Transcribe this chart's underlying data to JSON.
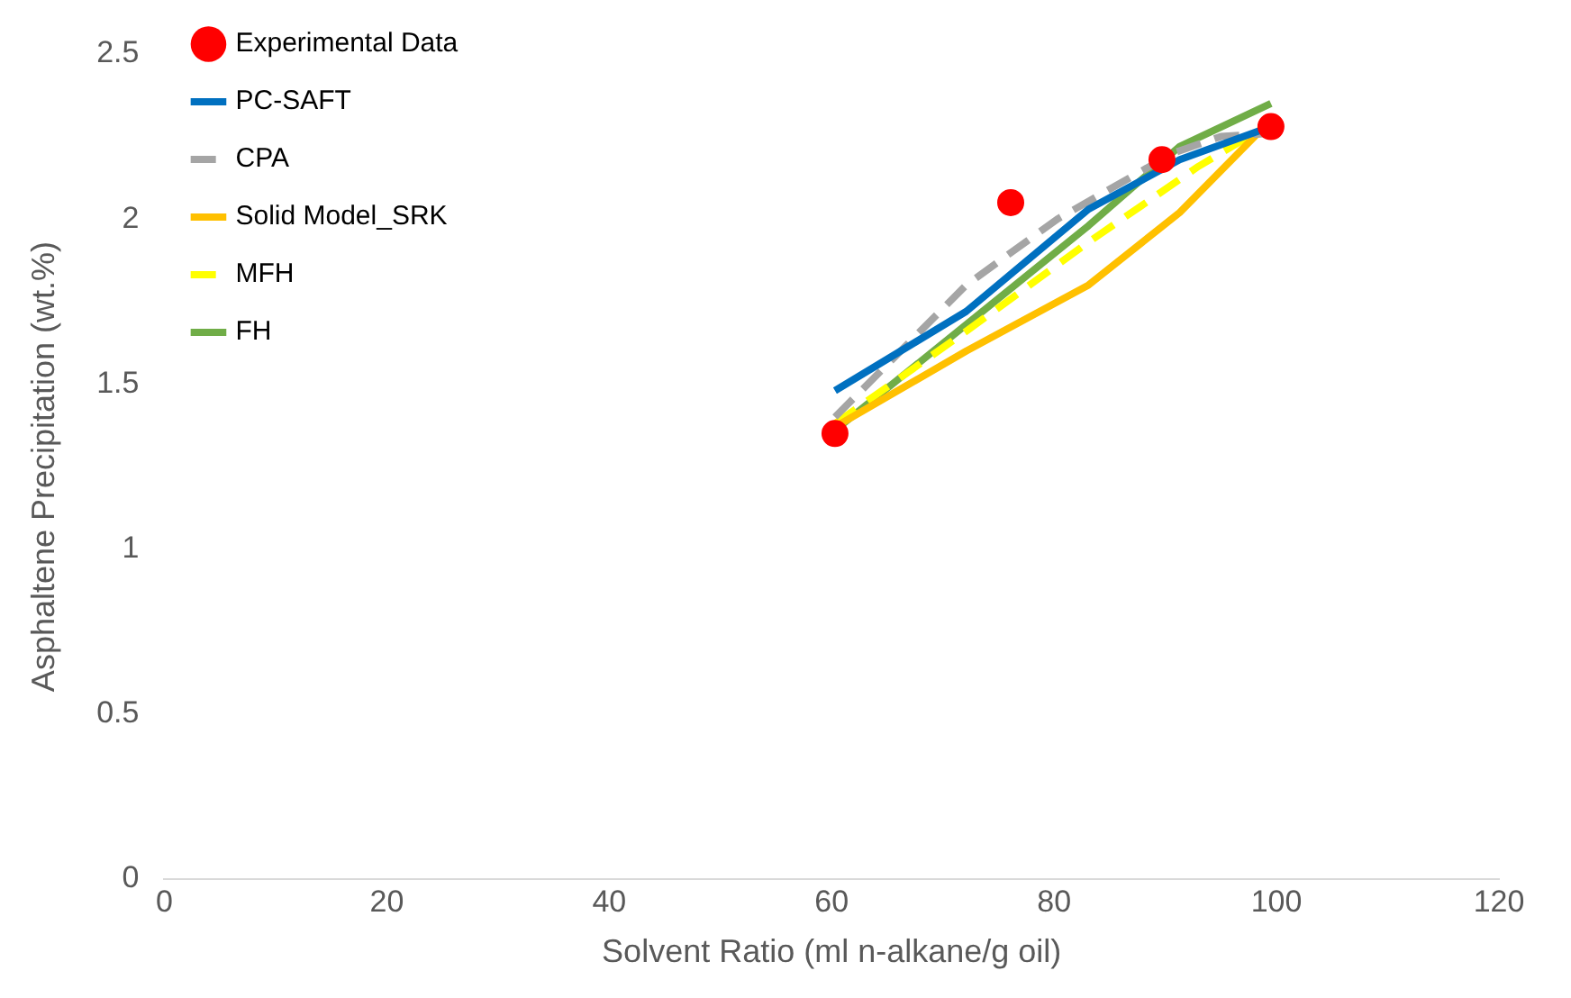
{
  "chart_data": {
    "type": "line",
    "xlabel": "Solvent Ratio (ml n-alkane/g oil)",
    "ylabel": "Asphaltene Precipitation (wt.%)",
    "xlim": [
      0,
      120
    ],
    "xticks": [
      0,
      20,
      40,
      60,
      80,
      100,
      120
    ],
    "ylim": [
      0,
      2.5
    ],
    "yticks": [
      0,
      0.5,
      1,
      1.5,
      2,
      2.5
    ],
    "grid": false,
    "legend": "left",
    "marker": "none",
    "series": [
      {
        "name": "Experimental Data",
        "type": "scatter",
        "marker": "circle",
        "color": "#ff0000",
        "x": [
          60.3,
          76.1,
          89.7,
          99.5
        ],
        "values": [
          1.35,
          2.05,
          2.18,
          2.28
        ]
      },
      {
        "name": "PC-SAFT",
        "color": "#0070c0",
        "line_style": "solid",
        "x": [
          60.3,
          72.1,
          83.1,
          91.3,
          99.5
        ],
        "values": [
          1.48,
          1.72,
          2.03,
          2.18,
          2.28
        ]
      },
      {
        "name": "CPA",
        "color": "#a5a5a5",
        "line_style": "dashed",
        "x": [
          60.3,
          72.1,
          80.3,
          90.7,
          95,
          99.5
        ],
        "values": [
          1.4,
          1.8,
          2.0,
          2.2,
          2.25,
          2.26
        ]
      },
      {
        "name": "Solid Model_SRK",
        "color": "#ffc000",
        "line_style": "solid",
        "x": [
          60.3,
          72.1,
          83.1,
          91.3,
          99.5
        ],
        "values": [
          1.37,
          1.6,
          1.8,
          2.02,
          2.3
        ]
      },
      {
        "name": "MFH",
        "color": "#ffff00",
        "line_style": "dashed",
        "x": [
          60.3,
          72.1,
          83.1,
          93,
          99.5
        ],
        "values": [
          1.38,
          1.66,
          1.93,
          2.16,
          2.29
        ]
      },
      {
        "name": "FH",
        "color": "#70ad47",
        "line_style": "solid",
        "x": [
          60.3,
          72.1,
          83.1,
          91.3,
          99.5
        ],
        "values": [
          1.36,
          1.68,
          1.98,
          2.22,
          2.35
        ]
      }
    ]
  }
}
